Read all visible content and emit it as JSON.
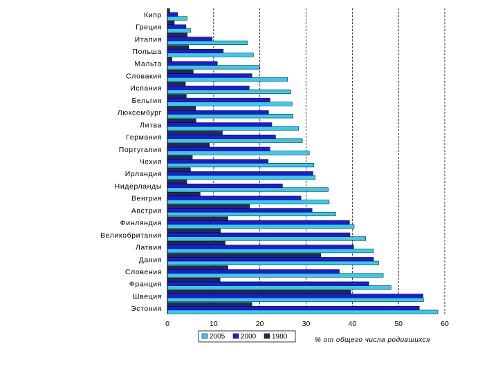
{
  "chart_data": {
    "type": "bar",
    "orientation": "horizontal",
    "title": "",
    "xlabel": "% от общего числа родившихся",
    "ylabel": "",
    "xlim": [
      0,
      60
    ],
    "xticks": [
      0,
      10,
      20,
      30,
      40,
      50,
      60
    ],
    "grid": "vertical-dashed",
    "legend_position": "bottom",
    "categories": [
      "Кипр",
      "Греция",
      "Италия",
      "Польша",
      "Мальта",
      "Словакия",
      "Испания",
      "Бельгия",
      "Люксембург",
      "Литва",
      "Германия",
      "Португалия",
      "Чехия",
      "Ирландия",
      "Нидерланды",
      "Венгрия",
      "Австрия",
      "Финляндия",
      "Великобритания",
      "Латвия",
      "Дания",
      "Словения",
      "Франция",
      "Швеция",
      "Эстония"
    ],
    "series": [
      {
        "name": "1980",
        "color": "#1f2a5c",
        "values": [
          0.5,
          1.5,
          4.3,
          4.6,
          1.0,
          5.6,
          3.9,
          4.1,
          6.1,
          6.2,
          11.9,
          9.1,
          5.4,
          5.0,
          4.2,
          7.1,
          17.8,
          13.1,
          11.5,
          12.5,
          33.2,
          13.1,
          11.4,
          39.7,
          18.3
        ]
      },
      {
        "name": "2000",
        "color": "#1c1cd8",
        "values": [
          2.2,
          4.0,
          9.7,
          12.1,
          10.8,
          18.3,
          17.7,
          22.2,
          21.9,
          22.6,
          23.4,
          22.2,
          21.8,
          31.5,
          24.9,
          28.9,
          31.3,
          39.4,
          39.5,
          40.3,
          44.6,
          37.2,
          43.6,
          55.3,
          54.5
        ]
      },
      {
        "name": "2005",
        "color": "#33ccee",
        "values": [
          4.3,
          5.0,
          17.3,
          18.6,
          19.9,
          26.0,
          26.7,
          27.0,
          27.2,
          28.4,
          29.2,
          30.7,
          31.7,
          32.0,
          34.8,
          35.0,
          36.4,
          40.4,
          42.9,
          44.6,
          45.7,
          46.7,
          48.4,
          55.4,
          58.5
        ]
      }
    ],
    "legend": [
      {
        "label": "2005",
        "color": "#33ccee"
      },
      {
        "label": "2000",
        "color": "#1c1cd8"
      },
      {
        "label": "1980",
        "color": "#1f2a5c"
      }
    ]
  }
}
